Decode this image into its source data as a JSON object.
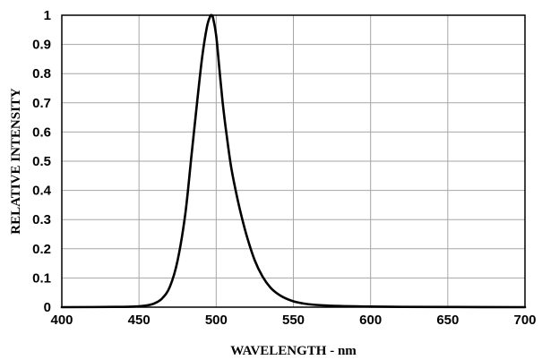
{
  "chart_data": {
    "type": "line",
    "title": "",
    "xlabel": "WAVELENGTH - nm",
    "ylabel": "RELATIVE INTENSITY",
    "xlim": [
      400,
      700
    ],
    "ylim": [
      0,
      1
    ],
    "x_ticks": [
      "400",
      "450",
      "500",
      "550",
      "600",
      "650",
      "700"
    ],
    "y_ticks": [
      "0",
      "0.1",
      "0.2",
      "0.3",
      "0.4",
      "0.5",
      "0.6",
      "0.7",
      "0.8",
      "0.9",
      "1"
    ],
    "grid": true,
    "legend": "none",
    "series": [
      {
        "color": "#000000",
        "x": [
          400,
          440,
          450,
          455,
          460,
          465,
          470,
          475,
          480,
          484,
          488,
          491,
          494,
          496,
          497,
          498,
          500,
          502,
          504,
          506,
          508,
          510,
          513,
          516,
          520,
          525,
          530,
          535,
          540,
          545,
          550,
          555,
          560,
          570,
          580,
          590,
          600,
          620,
          650,
          700
        ],
        "y": [
          0.0,
          0.001,
          0.003,
          0.006,
          0.013,
          0.03,
          0.07,
          0.16,
          0.32,
          0.52,
          0.72,
          0.86,
          0.96,
          0.995,
          1.0,
          0.99,
          0.93,
          0.82,
          0.71,
          0.62,
          0.54,
          0.47,
          0.39,
          0.32,
          0.24,
          0.16,
          0.105,
          0.068,
          0.045,
          0.03,
          0.02,
          0.014,
          0.01,
          0.006,
          0.004,
          0.003,
          0.002,
          0.001,
          0.0005,
          0.0
        ]
      }
    ]
  }
}
